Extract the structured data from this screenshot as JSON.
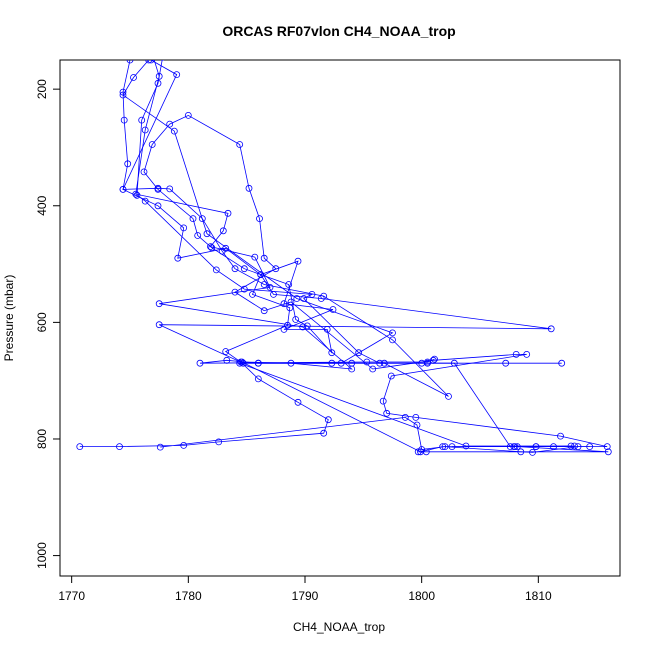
{
  "chart_data": {
    "type": "line",
    "title": "ORCAS RF07vlon CH4_NOAA_trop",
    "xlabel": "CH4_NOAA_trop",
    "ylabel": "Pressure (mbar)",
    "xlim": [
      1769,
      1817
    ],
    "ylim": [
      1035,
      150
    ],
    "y_inverted": true,
    "x_ticks": [
      1770,
      1780,
      1790,
      1800,
      1810
    ],
    "y_ticks": [
      200,
      400,
      600,
      800,
      1000
    ],
    "grid": false,
    "legend": "none",
    "series": [
      {
        "color": "#0000ff",
        "marker": "open-circle",
        "points": [
          [
            1770.7,
            813
          ],
          [
            1774.1,
            813
          ],
          [
            1779.6,
            811
          ],
          [
            1782.6,
            805
          ],
          [
            1791.6,
            790
          ],
          [
            1792.0,
            767
          ],
          [
            1789.4,
            737
          ],
          [
            1786.0,
            697
          ],
          [
            1784.5,
            668
          ],
          [
            1783.2,
            650
          ],
          [
            1788.5,
            605
          ],
          [
            1788.7,
            575
          ],
          [
            1785.5,
            552
          ],
          [
            1786.2,
            518
          ],
          [
            1789.4,
            495
          ],
          [
            1788.2,
            568
          ],
          [
            1792.4,
            578
          ],
          [
            1788.2,
            612
          ],
          [
            1791.9,
            612
          ],
          [
            1792.3,
            652
          ],
          [
            1790.2,
            606
          ],
          [
            1789.2,
            595
          ],
          [
            1788.6,
            535
          ],
          [
            1784.8,
            508
          ],
          [
            1782.0,
            472
          ],
          [
            1780.8,
            451
          ],
          [
            1780.4,
            422
          ],
          [
            1777.4,
            372
          ],
          [
            1776.2,
            342
          ],
          [
            1776.9,
            295
          ],
          [
            1778.4,
            260
          ],
          [
            1780.0,
            245
          ],
          [
            1784.4,
            295
          ],
          [
            1785.2,
            370
          ],
          [
            1786.1,
            422
          ],
          [
            1786.5,
            490
          ],
          [
            1787.5,
            508
          ],
          [
            1784.0,
            548
          ],
          [
            1786.5,
            580
          ],
          [
            1788.8,
            565
          ],
          [
            1795.8,
            680
          ],
          [
            1801.0,
            665
          ],
          [
            1808.1,
            655
          ],
          [
            1809.0,
            655
          ],
          [
            1797.4,
            692
          ],
          [
            1796.7,
            735
          ],
          [
            1797.0,
            756
          ],
          [
            1799.5,
            763
          ],
          [
            1811.9,
            795
          ],
          [
            1815.9,
            813
          ],
          [
            1813.4,
            813
          ],
          [
            1809.5,
            823
          ],
          [
            1808.5,
            822
          ],
          [
            1802.0,
            813
          ],
          [
            1800.0,
            818
          ],
          [
            1799.6,
            776
          ],
          [
            1798.6,
            763
          ],
          [
            1777.6,
            814
          ]
        ]
      },
      {
        "color": "#0000ff",
        "marker": "open-circle",
        "points": [
          [
            1775.0,
            150
          ],
          [
            1774.4,
            205
          ],
          [
            1774.5,
            253
          ],
          [
            1774.8,
            328
          ],
          [
            1774.4,
            372
          ],
          [
            1777.4,
            400
          ],
          [
            1779.6,
            438
          ],
          [
            1779.1,
            490
          ],
          [
            1783.2,
            473
          ],
          [
            1786.2,
            518
          ],
          [
            1787.3,
            552
          ],
          [
            1791.4,
            559
          ],
          [
            1811.1,
            611
          ],
          [
            1777.5,
            604
          ],
          [
            1784.7,
            670
          ],
          [
            1792.3,
            670
          ],
          [
            1800.0,
            670
          ],
          [
            1807.2,
            670
          ],
          [
            1812.0,
            670
          ]
        ]
      },
      {
        "color": "#0000ff",
        "marker": "open-circle",
        "points": [
          [
            1776.6,
            150
          ],
          [
            1775.3,
            180
          ],
          [
            1774.4,
            210
          ],
          [
            1778.8,
            272
          ],
          [
            1781.6,
            448
          ],
          [
            1789.3,
            559
          ],
          [
            1797.5,
            618
          ],
          [
            1793.1,
            670
          ],
          [
            1786.0,
            670
          ],
          [
            1783.3,
            665
          ],
          [
            1781.0,
            670
          ],
          [
            1795.3,
            668
          ],
          [
            1800.5,
            668
          ],
          [
            1801.1,
            663
          ]
        ]
      },
      {
        "color": "#0000ff",
        "marker": "open-circle",
        "points": [
          [
            1776.8,
            150
          ],
          [
            1779.0,
            175
          ],
          [
            1774.4,
            372
          ],
          [
            1777.4,
            370
          ],
          [
            1778.4,
            371
          ],
          [
            1781.2,
            422
          ],
          [
            1782.9,
            478
          ],
          [
            1784.0,
            508
          ],
          [
            1786.5,
            535
          ],
          [
            1791.6,
            555
          ],
          [
            1797.5,
            630
          ],
          [
            1802.3,
            727
          ],
          [
            1796.8,
            670
          ],
          [
            1794.0,
            670
          ],
          [
            1786.0,
            670
          ],
          [
            1784.4,
            670
          ],
          [
            1803.8,
            812
          ],
          [
            1812.8,
            812
          ],
          [
            1802.6,
            813
          ],
          [
            1807.9,
            813
          ],
          [
            1814.4,
            813
          ]
        ]
      },
      {
        "color": "#0000ff",
        "marker": "open-circle",
        "points": [
          [
            1777.0,
            145
          ],
          [
            1777.5,
            178
          ],
          [
            1776.3,
            270
          ],
          [
            1775.5,
            380
          ],
          [
            1783.4,
            413
          ],
          [
            1783.0,
            443
          ],
          [
            1781.9,
            470
          ],
          [
            1785.7,
            488
          ],
          [
            1787.0,
            540
          ],
          [
            1777.5,
            568
          ],
          [
            1789.8,
            608
          ],
          [
            1794.0,
            680
          ],
          [
            1788.8,
            670
          ],
          [
            1784.6,
            668
          ],
          [
            1799.9,
            822
          ],
          [
            1801.8,
            813
          ],
          [
            1808.0,
            813
          ],
          [
            1809.8,
            813
          ],
          [
            1811.3,
            813
          ],
          [
            1813.1,
            812
          ],
          [
            1809.8,
            813
          ]
        ]
      },
      {
        "color": "#0000ff",
        "marker": "open-circle",
        "points": [
          [
            1777.8,
            145
          ],
          [
            1777.4,
            190
          ],
          [
            1776.0,
            253
          ],
          [
            1775.6,
            382
          ],
          [
            1776.3,
            392
          ],
          [
            1782.4,
            510
          ],
          [
            1784.8,
            543
          ],
          [
            1790.6,
            552
          ],
          [
            1789.9,
            559
          ],
          [
            1794.6,
            652
          ],
          [
            1796.4,
            670
          ],
          [
            1800.5,
            670
          ],
          [
            1802.8,
            670
          ],
          [
            1807.6,
            813
          ],
          [
            1808.2,
            813
          ],
          [
            1816.0,
            822
          ],
          [
            1799.7,
            822
          ],
          [
            1800.4,
            822
          ]
        ]
      }
    ]
  }
}
